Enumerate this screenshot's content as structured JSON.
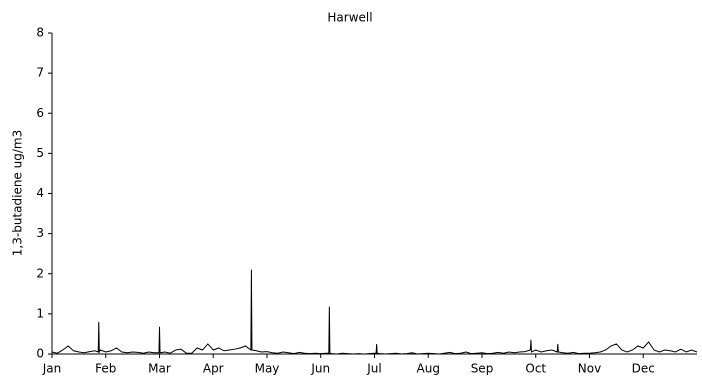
{
  "chart_data": {
    "type": "line",
    "title": "Harwell",
    "ylabel": "1,3-butadiene ug/m3",
    "color": "#000000",
    "grid": false,
    "xlim": [
      0,
      12
    ],
    "ylim": [
      0,
      8
    ],
    "yticks": [
      0,
      1,
      2,
      3,
      4,
      5,
      6,
      7,
      8
    ],
    "xticks": [
      {
        "value": 0,
        "label": "Jan"
      },
      {
        "value": 1,
        "label": "Feb"
      },
      {
        "value": 2,
        "label": "Mar"
      },
      {
        "value": 3,
        "label": "Apr"
      },
      {
        "value": 4,
        "label": "May"
      },
      {
        "value": 5,
        "label": "Jun"
      },
      {
        "value": 6,
        "label": "Jul"
      },
      {
        "value": 7,
        "label": "Aug"
      },
      {
        "value": 8,
        "label": "Sep"
      },
      {
        "value": 9,
        "label": "Oct"
      },
      {
        "value": 10,
        "label": "Nov"
      },
      {
        "value": 11,
        "label": "Dec"
      }
    ],
    "x": [
      0.0,
      0.1,
      0.2,
      0.3,
      0.4,
      0.5,
      0.6,
      0.7,
      0.8,
      0.86,
      0.87,
      0.88,
      0.9,
      1.0,
      1.1,
      1.2,
      1.3,
      1.4,
      1.5,
      1.6,
      1.7,
      1.8,
      1.9,
      1.99,
      2.0,
      2.01,
      2.1,
      2.2,
      2.3,
      2.4,
      2.5,
      2.6,
      2.7,
      2.8,
      2.9,
      3.0,
      3.1,
      3.2,
      3.3,
      3.4,
      3.5,
      3.6,
      3.7,
      3.71,
      3.72,
      3.8,
      3.9,
      4.0,
      4.1,
      4.2,
      4.3,
      4.4,
      4.5,
      4.6,
      4.7,
      4.8,
      4.9,
      5.0,
      5.1,
      5.15,
      5.16,
      5.17,
      5.2,
      5.3,
      5.4,
      5.5,
      5.6,
      5.7,
      5.8,
      5.9,
      6.0,
      6.03,
      6.04,
      6.05,
      6.1,
      6.2,
      6.3,
      6.4,
      6.5,
      6.6,
      6.7,
      6.8,
      6.9,
      7.0,
      7.1,
      7.2,
      7.3,
      7.4,
      7.5,
      7.6,
      7.7,
      7.8,
      7.9,
      8.0,
      8.1,
      8.2,
      8.3,
      8.4,
      8.5,
      8.6,
      8.7,
      8.8,
      8.9,
      8.91,
      8.92,
      9.0,
      9.1,
      9.2,
      9.3,
      9.4,
      9.41,
      9.42,
      9.5,
      9.6,
      9.7,
      9.8,
      9.9,
      10.0,
      10.1,
      10.2,
      10.3,
      10.4,
      10.5,
      10.6,
      10.7,
      10.8,
      10.9,
      11.0,
      11.1,
      11.2,
      11.3,
      11.4,
      11.5,
      11.6,
      11.7,
      11.8,
      11.9,
      12.0
    ],
    "series": [
      {
        "values": [
          0.05,
          0.02,
          0.1,
          0.2,
          0.08,
          0.05,
          0.03,
          0.06,
          0.08,
          0.05,
          0.8,
          0.05,
          0.1,
          0.05,
          0.08,
          0.15,
          0.05,
          0.03,
          0.05,
          0.04,
          0.02,
          0.05,
          0.03,
          0.03,
          0.68,
          0.03,
          0.05,
          0.02,
          0.1,
          0.12,
          0.02,
          0.02,
          0.15,
          0.1,
          0.25,
          0.1,
          0.15,
          0.08,
          0.1,
          0.12,
          0.15,
          0.2,
          0.1,
          2.1,
          0.1,
          0.08,
          0.05,
          0.06,
          0.03,
          0.02,
          0.05,
          0.03,
          0.01,
          0.04,
          0.02,
          0.01,
          0.02,
          0.01,
          0.02,
          0.02,
          1.18,
          0.02,
          0.01,
          0.0,
          0.02,
          0.01,
          0.0,
          0.01,
          0.0,
          0.01,
          0.02,
          0.02,
          0.25,
          0.02,
          0.01,
          0.0,
          0.01,
          0.02,
          0.0,
          0.01,
          0.03,
          0.0,
          0.01,
          0.02,
          0.01,
          0.0,
          0.02,
          0.04,
          0.01,
          0.02,
          0.05,
          0.01,
          0.02,
          0.03,
          0.01,
          0.02,
          0.04,
          0.02,
          0.05,
          0.03,
          0.05,
          0.06,
          0.1,
          0.35,
          0.05,
          0.1,
          0.05,
          0.08,
          0.1,
          0.05,
          0.25,
          0.05,
          0.03,
          0.02,
          0.04,
          0.01,
          0.02,
          0.02,
          0.03,
          0.05,
          0.1,
          0.2,
          0.25,
          0.1,
          0.05,
          0.1,
          0.2,
          0.15,
          0.3,
          0.1,
          0.05,
          0.1,
          0.08,
          0.05,
          0.12,
          0.05,
          0.1,
          0.05
        ]
      }
    ]
  }
}
